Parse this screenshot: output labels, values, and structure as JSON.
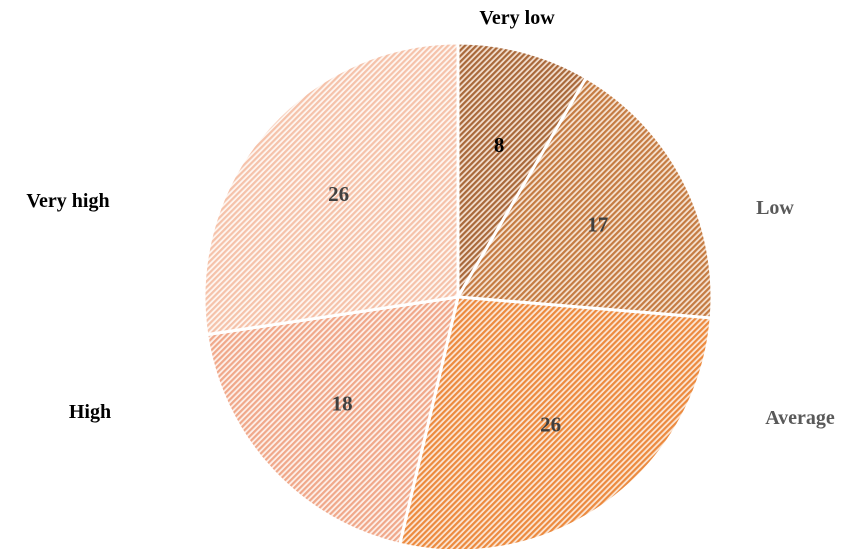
{
  "chart_data": {
    "type": "pie",
    "title": "",
    "start_angle_deg": 0,
    "direction": "clockwise",
    "slices": [
      {
        "label": "Very low",
        "value": 8,
        "color": "#a8683a",
        "pattern_bg": "#f3dfcf",
        "label_color": "#000000",
        "value_color": "#000000"
      },
      {
        "label": "Low",
        "value": 17,
        "color": "#c47b42",
        "pattern_bg": "#f6e2d1",
        "label_color": "#595959",
        "value_color": "#404040"
      },
      {
        "label": "Average",
        "value": 26,
        "color": "#ec8a3e",
        "pattern_bg": "#fbe6d5",
        "label_color": "#595959",
        "value_color": "#404040"
      },
      {
        "label": "High",
        "value": 18,
        "color": "#f0a88a",
        "pattern_bg": "#fdf0ea",
        "label_color": "#000000",
        "value_color": "#404040"
      },
      {
        "label": "Very high",
        "value": 26,
        "color": "#f5c2aa",
        "pattern_bg": "#fef6f1",
        "label_color": "#000000",
        "value_color": "#404040"
      }
    ],
    "legend": "none",
    "data_labels": "inside"
  }
}
